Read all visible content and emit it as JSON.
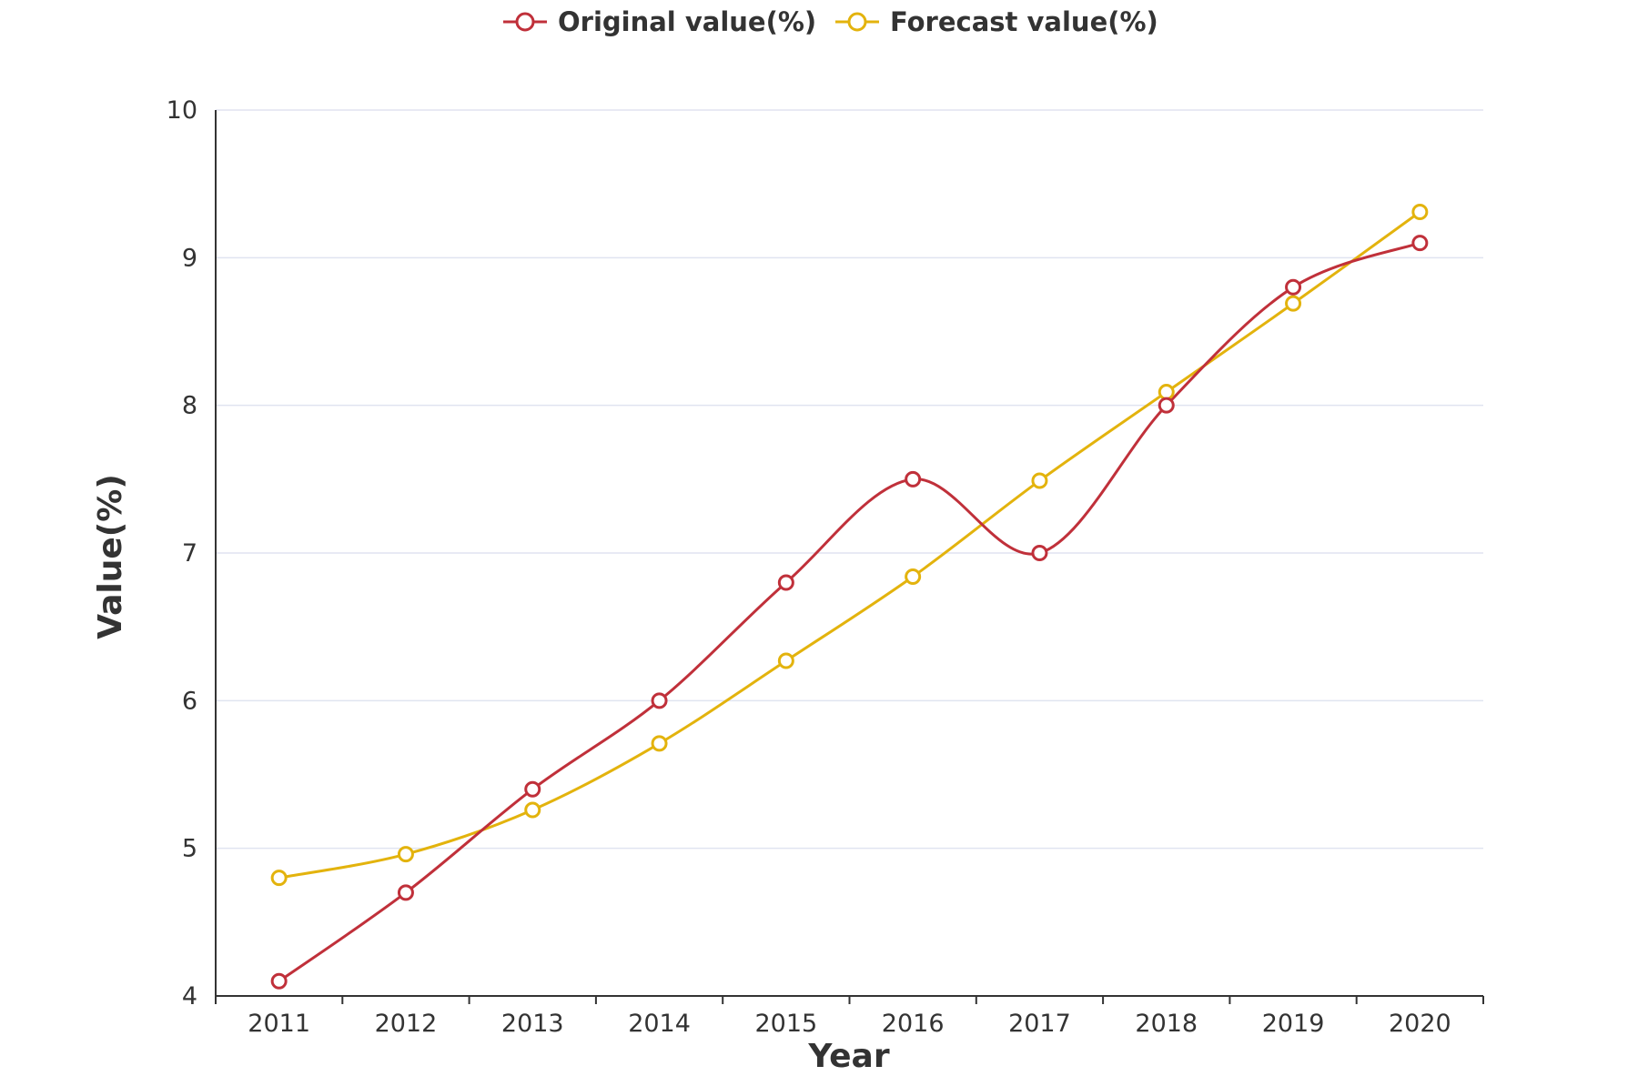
{
  "chart_data": {
    "type": "line",
    "categories": [
      "2011",
      "2012",
      "2013",
      "2014",
      "2015",
      "2016",
      "2017",
      "2018",
      "2019",
      "2020"
    ],
    "series": [
      {
        "name": "Original value(%)",
        "color": "#c0303a",
        "values": [
          4.1,
          4.7,
          5.4,
          6.0,
          6.8,
          7.5,
          7.0,
          8.0,
          8.8,
          9.1
        ]
      },
      {
        "name": "Forecast value(%)",
        "color": "#e3b30d",
        "values": [
          4.8,
          4.96,
          5.26,
          5.71,
          6.27,
          6.84,
          7.49,
          8.09,
          8.69,
          9.31
        ]
      }
    ],
    "xlabel": "Year",
    "ylabel": "Value(%)",
    "ylim": [
      4,
      10
    ],
    "yticks": [
      "4",
      "5",
      "6",
      "7",
      "8",
      "9",
      "10"
    ],
    "grid": true,
    "legend_position": "top-center",
    "smooth": true
  }
}
